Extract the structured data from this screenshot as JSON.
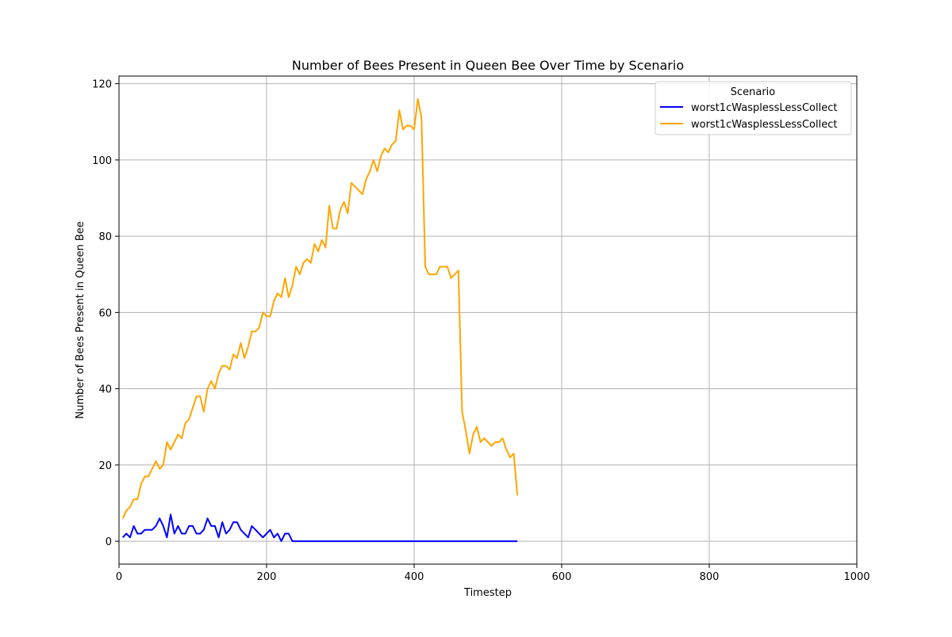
{
  "chart_data": {
    "type": "line",
    "title": "Number of Bees Present in Queen Bee Over Time by Scenario",
    "xlabel": "Timestep",
    "ylabel": "Number of Bees Present in Queen Bee",
    "xlim": [
      0,
      1000
    ],
    "ylim": [
      -6,
      122
    ],
    "xticks": [
      0,
      200,
      400,
      600,
      800,
      1000
    ],
    "yticks": [
      0,
      20,
      40,
      60,
      80,
      100,
      120
    ],
    "grid": true,
    "legend": {
      "title": "Scenario",
      "placement": "top-right"
    },
    "series": [
      {
        "name": "worst1cWasplessLessCollect",
        "color": "#0000ff",
        "x": [
          5,
          10,
          15,
          20,
          25,
          30,
          35,
          40,
          45,
          50,
          55,
          60,
          65,
          70,
          75,
          80,
          85,
          90,
          95,
          100,
          105,
          110,
          115,
          120,
          125,
          130,
          135,
          140,
          145,
          150,
          155,
          160,
          165,
          170,
          175,
          180,
          185,
          190,
          195,
          200,
          205,
          210,
          215,
          220,
          225,
          230,
          235,
          240,
          260,
          300,
          350,
          400,
          450,
          500,
          540
        ],
        "y": [
          1,
          2,
          1,
          4,
          2,
          2,
          3,
          3,
          3,
          4,
          6,
          4,
          1,
          7,
          2,
          4,
          2,
          2,
          4,
          4,
          2,
          2,
          3,
          6,
          4,
          4,
          1,
          5,
          2,
          3,
          5,
          5,
          3,
          2,
          1,
          4,
          3,
          2,
          1,
          2,
          3,
          1,
          2,
          0,
          2,
          2,
          0,
          0,
          0,
          0,
          0,
          0,
          0,
          0,
          0
        ]
      },
      {
        "name": "worst1cWasplessLessCollect",
        "color": "#ffa500",
        "x": [
          5,
          10,
          15,
          20,
          25,
          30,
          35,
          40,
          45,
          50,
          55,
          60,
          65,
          70,
          75,
          80,
          85,
          90,
          95,
          100,
          105,
          110,
          115,
          120,
          125,
          130,
          135,
          140,
          145,
          150,
          155,
          160,
          165,
          170,
          175,
          180,
          185,
          190,
          195,
          200,
          205,
          210,
          215,
          220,
          225,
          230,
          235,
          240,
          245,
          250,
          255,
          260,
          265,
          270,
          275,
          280,
          285,
          290,
          295,
          300,
          305,
          310,
          315,
          320,
          325,
          330,
          335,
          340,
          345,
          350,
          355,
          360,
          365,
          370,
          375,
          380,
          385,
          390,
          395,
          400,
          405,
          410,
          415,
          420,
          425,
          430,
          435,
          440,
          445,
          450,
          455,
          460,
          465,
          470,
          475,
          480,
          485,
          490,
          495,
          500,
          505,
          510,
          515,
          520,
          525,
          530,
          535,
          540
        ],
        "y": [
          6,
          8,
          9,
          11,
          11,
          15,
          17,
          17,
          19,
          21,
          19,
          20,
          26,
          24,
          26,
          28,
          27,
          31,
          32,
          35,
          38,
          38,
          34,
          40,
          42,
          40,
          44,
          46,
          46,
          45,
          49,
          48,
          52,
          48,
          51,
          55,
          55,
          56,
          60,
          59,
          59,
          63,
          65,
          64,
          69,
          64,
          67,
          72,
          70,
          73,
          74,
          73,
          78,
          76,
          79,
          77,
          88,
          82,
          82,
          87,
          89,
          86,
          94,
          93,
          92,
          91,
          95,
          97,
          100,
          97,
          101,
          103,
          102,
          104,
          105,
          113,
          108,
          109,
          109,
          108,
          116,
          111,
          72,
          70,
          70,
          70,
          72,
          72,
          72,
          69,
          70,
          71,
          34,
          29,
          23,
          28,
          30,
          26,
          27,
          26,
          25,
          26,
          26,
          27,
          24,
          22,
          23,
          12
        ]
      }
    ]
  }
}
